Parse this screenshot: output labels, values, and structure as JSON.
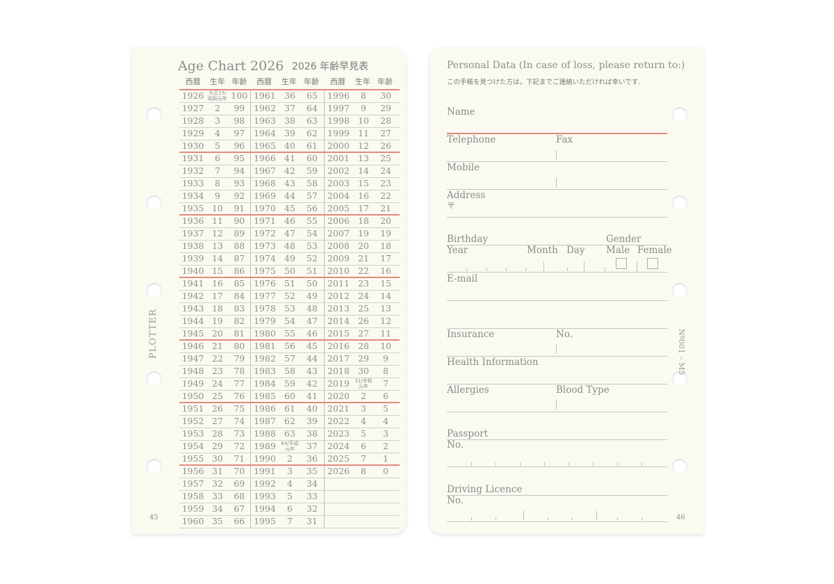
{
  "left": {
    "title": "Age Chart 2026",
    "title_jp": "2026 年齢早見表",
    "brand": "PLOTTER",
    "page_number": "45",
    "headers": [
      "西暦",
      "生年",
      "年齢"
    ],
    "rows": [
      [
        "1926",
        "大正15/昭和元年",
        "100",
        "1961",
        "36",
        "65",
        "1996",
        "8",
        "30"
      ],
      [
        "1927",
        "2",
        "99",
        "1962",
        "37",
        "64",
        "1997",
        "9",
        "29"
      ],
      [
        "1928",
        "3",
        "98",
        "1963",
        "38",
        "63",
        "1998",
        "10",
        "28"
      ],
      [
        "1929",
        "4",
        "97",
        "1964",
        "39",
        "62",
        "1999",
        "11",
        "27"
      ],
      [
        "1930",
        "5",
        "96",
        "1965",
        "40",
        "61",
        "2000",
        "12",
        "26"
      ],
      [
        "1931",
        "6",
        "95",
        "1966",
        "41",
        "60",
        "2001",
        "13",
        "25"
      ],
      [
        "1932",
        "7",
        "94",
        "1967",
        "42",
        "59",
        "2002",
        "14",
        "24"
      ],
      [
        "1933",
        "8",
        "93",
        "1968",
        "43",
        "58",
        "2003",
        "15",
        "23"
      ],
      [
        "1934",
        "9",
        "92",
        "1969",
        "44",
        "57",
        "2004",
        "16",
        "22"
      ],
      [
        "1935",
        "10",
        "91",
        "1970",
        "45",
        "56",
        "2005",
        "17",
        "21"
      ],
      [
        "1936",
        "11",
        "90",
        "1971",
        "46",
        "55",
        "2006",
        "18",
        "20"
      ],
      [
        "1937",
        "12",
        "89",
        "1972",
        "47",
        "54",
        "2007",
        "19",
        "19"
      ],
      [
        "1938",
        "13",
        "88",
        "1973",
        "48",
        "53",
        "2008",
        "20",
        "18"
      ],
      [
        "1939",
        "14",
        "87",
        "1974",
        "49",
        "52",
        "2009",
        "21",
        "17"
      ],
      [
        "1940",
        "15",
        "86",
        "1975",
        "50",
        "51",
        "2010",
        "22",
        "16"
      ],
      [
        "1941",
        "16",
        "85",
        "1976",
        "51",
        "50",
        "2011",
        "23",
        "15"
      ],
      [
        "1942",
        "17",
        "84",
        "1977",
        "52",
        "49",
        "2012",
        "24",
        "14"
      ],
      [
        "1943",
        "18",
        "83",
        "1978",
        "53",
        "48",
        "2013",
        "25",
        "13"
      ],
      [
        "1944",
        "19",
        "82",
        "1979",
        "54",
        "47",
        "2014",
        "26",
        "12"
      ],
      [
        "1945",
        "20",
        "81",
        "1980",
        "55",
        "46",
        "2015",
        "27",
        "11"
      ],
      [
        "1946",
        "21",
        "80",
        "1981",
        "56",
        "45",
        "2016",
        "28",
        "10"
      ],
      [
        "1947",
        "22",
        "79",
        "1982",
        "57",
        "44",
        "2017",
        "29",
        "9"
      ],
      [
        "1948",
        "23",
        "78",
        "1983",
        "58",
        "43",
        "2018",
        "30",
        "8"
      ],
      [
        "1949",
        "24",
        "77",
        "1984",
        "59",
        "42",
        "2019",
        "31/令和元年",
        "7"
      ],
      [
        "1950",
        "25",
        "76",
        "1985",
        "60",
        "41",
        "2020",
        "2",
        "6"
      ],
      [
        "1951",
        "26",
        "75",
        "1986",
        "61",
        "40",
        "2021",
        "3",
        "5"
      ],
      [
        "1952",
        "27",
        "74",
        "1987",
        "62",
        "39",
        "2022",
        "4",
        "4"
      ],
      [
        "1953",
        "28",
        "73",
        "1988",
        "63",
        "38",
        "2023",
        "5",
        "3"
      ],
      [
        "1954",
        "29",
        "72",
        "1989",
        "64/平成元年",
        "37",
        "2024",
        "6",
        "2"
      ],
      [
        "1955",
        "30",
        "71",
        "1990",
        "2",
        "36",
        "2025",
        "7",
        "1"
      ],
      [
        "1956",
        "31",
        "70",
        "1991",
        "3",
        "35",
        "2026",
        "8",
        "0"
      ],
      [
        "1957",
        "32",
        "69",
        "1992",
        "4",
        "34",
        "",
        "",
        ""
      ],
      [
        "1958",
        "33",
        "68",
        "1993",
        "5",
        "33",
        "",
        "",
        ""
      ],
      [
        "1959",
        "34",
        "67",
        "1994",
        "6",
        "32",
        "",
        "",
        ""
      ],
      [
        "1960",
        "35",
        "66",
        "1995",
        "7",
        "31",
        "",
        "",
        ""
      ]
    ]
  },
  "right": {
    "title": "Personal Data (In case of loss, please return to:)",
    "subtitle": "この手帳を見つけた方は，下記までご連絡いただければ幸いです.",
    "fields": {
      "name": "Name",
      "telephone": "Telephone",
      "fax": "Fax",
      "mobile": "Mobile",
      "address": "Address",
      "postal": "〒",
      "birthday": "Birthday",
      "gender": "Gender",
      "year": "Year",
      "month": "Month",
      "day": "Day",
      "male": "Male",
      "female": "Female",
      "email": "E-mail",
      "insurance": "Insurance",
      "insurance_no": "No.",
      "health": "Health Information",
      "allergies": "Allergies",
      "blood": "Blood Type",
      "passport": "Passport",
      "passport_no": "No.",
      "licence": "Driving Licence",
      "licence_no": "No."
    },
    "code": "Nº001 – M5",
    "page_number": "46"
  },
  "colors": {
    "paper": "#fbfaf1",
    "accent_red": "#e08a7e",
    "text": "#8d8d8d"
  }
}
